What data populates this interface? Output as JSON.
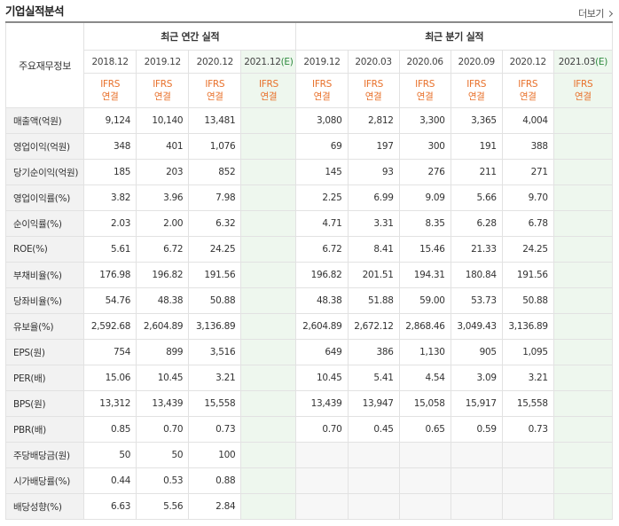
{
  "header": {
    "title": "기업실적분석",
    "more_label": "더보기"
  },
  "table": {
    "corner_label": "주요재무정보",
    "annual_title": "최근 연간 실적",
    "quarter_title": "최근 분기 실적",
    "annual_periods": [
      "2018.12",
      "2019.12",
      "2020.12"
    ],
    "annual_est_period_base": "2021.12",
    "annual_est_mark": "(E)",
    "quarter_periods": [
      "2019.12",
      "2020.03",
      "2020.06",
      "2020.09",
      "2020.12"
    ],
    "quarter_est_period_base": "2021.03",
    "quarter_est_mark": "(E)",
    "standard_top": "IFRS",
    "standard_bottom": "연결",
    "rows": [
      {
        "label": "매출액(억원)",
        "annual": [
          "9,124",
          "10,140",
          "13,481",
          ""
        ],
        "quarter": [
          "3,080",
          "2,812",
          "3,300",
          "3,365",
          "4,004",
          ""
        ]
      },
      {
        "label": "영업이익(억원)",
        "annual": [
          "348",
          "401",
          "1,076",
          ""
        ],
        "quarter": [
          "69",
          "197",
          "300",
          "191",
          "388",
          ""
        ]
      },
      {
        "label": "당기순이익(억원)",
        "annual": [
          "185",
          "203",
          "852",
          ""
        ],
        "quarter": [
          "145",
          "93",
          "276",
          "211",
          "271",
          ""
        ]
      },
      {
        "label": "영업이익률(%)",
        "annual": [
          "3.82",
          "3.96",
          "7.98",
          ""
        ],
        "quarter": [
          "2.25",
          "6.99",
          "9.09",
          "5.66",
          "9.70",
          ""
        ]
      },
      {
        "label": "순이익률(%)",
        "annual": [
          "2.03",
          "2.00",
          "6.32",
          ""
        ],
        "quarter": [
          "4.71",
          "3.31",
          "8.35",
          "6.28",
          "6.78",
          ""
        ]
      },
      {
        "label": "ROE(%)",
        "annual": [
          "5.61",
          "6.72",
          "24.25",
          ""
        ],
        "quarter": [
          "6.72",
          "8.41",
          "15.46",
          "21.33",
          "24.25",
          ""
        ]
      },
      {
        "label": "부채비율(%)",
        "annual": [
          "176.98",
          "196.82",
          "191.56",
          ""
        ],
        "quarter": [
          "196.82",
          "201.51",
          "194.31",
          "180.84",
          "191.56",
          ""
        ]
      },
      {
        "label": "당좌비율(%)",
        "annual": [
          "54.76",
          "48.38",
          "50.88",
          ""
        ],
        "quarter": [
          "48.38",
          "51.88",
          "59.00",
          "53.73",
          "50.88",
          ""
        ]
      },
      {
        "label": "유보율(%)",
        "annual": [
          "2,592.68",
          "2,604.89",
          "3,136.89",
          ""
        ],
        "quarter": [
          "2,604.89",
          "2,672.12",
          "2,868.46",
          "3,049.43",
          "3,136.89",
          ""
        ]
      },
      {
        "label": "EPS(원)",
        "annual": [
          "754",
          "899",
          "3,516",
          ""
        ],
        "quarter": [
          "649",
          "386",
          "1,130",
          "905",
          "1,095",
          ""
        ]
      },
      {
        "label": "PER(배)",
        "annual": [
          "15.06",
          "10.45",
          "3.21",
          ""
        ],
        "quarter": [
          "10.45",
          "5.41",
          "4.54",
          "3.09",
          "3.21",
          ""
        ]
      },
      {
        "label": "BPS(원)",
        "annual": [
          "13,312",
          "13,439",
          "15,558",
          ""
        ],
        "quarter": [
          "13,439",
          "13,947",
          "15,058",
          "15,917",
          "15,558",
          ""
        ]
      },
      {
        "label": "PBR(배)",
        "annual": [
          "0.85",
          "0.70",
          "0.73",
          ""
        ],
        "quarter": [
          "0.70",
          "0.45",
          "0.65",
          "0.59",
          "0.73",
          ""
        ]
      },
      {
        "label": "주당배당금(원)",
        "annual": [
          "50",
          "50",
          "100",
          ""
        ],
        "quarter": [
          "",
          "",
          "",
          "",
          "",
          ""
        ]
      },
      {
        "label": "시가배당률(%)",
        "annual": [
          "0.44",
          "0.53",
          "0.88",
          ""
        ],
        "quarter": [
          "",
          "",
          "",
          "",
          "",
          ""
        ]
      },
      {
        "label": "배당성향(%)",
        "annual": [
          "6.63",
          "5.56",
          "2.84",
          ""
        ],
        "quarter": [
          "",
          "",
          "",
          "",
          "",
          ""
        ]
      }
    ]
  }
}
